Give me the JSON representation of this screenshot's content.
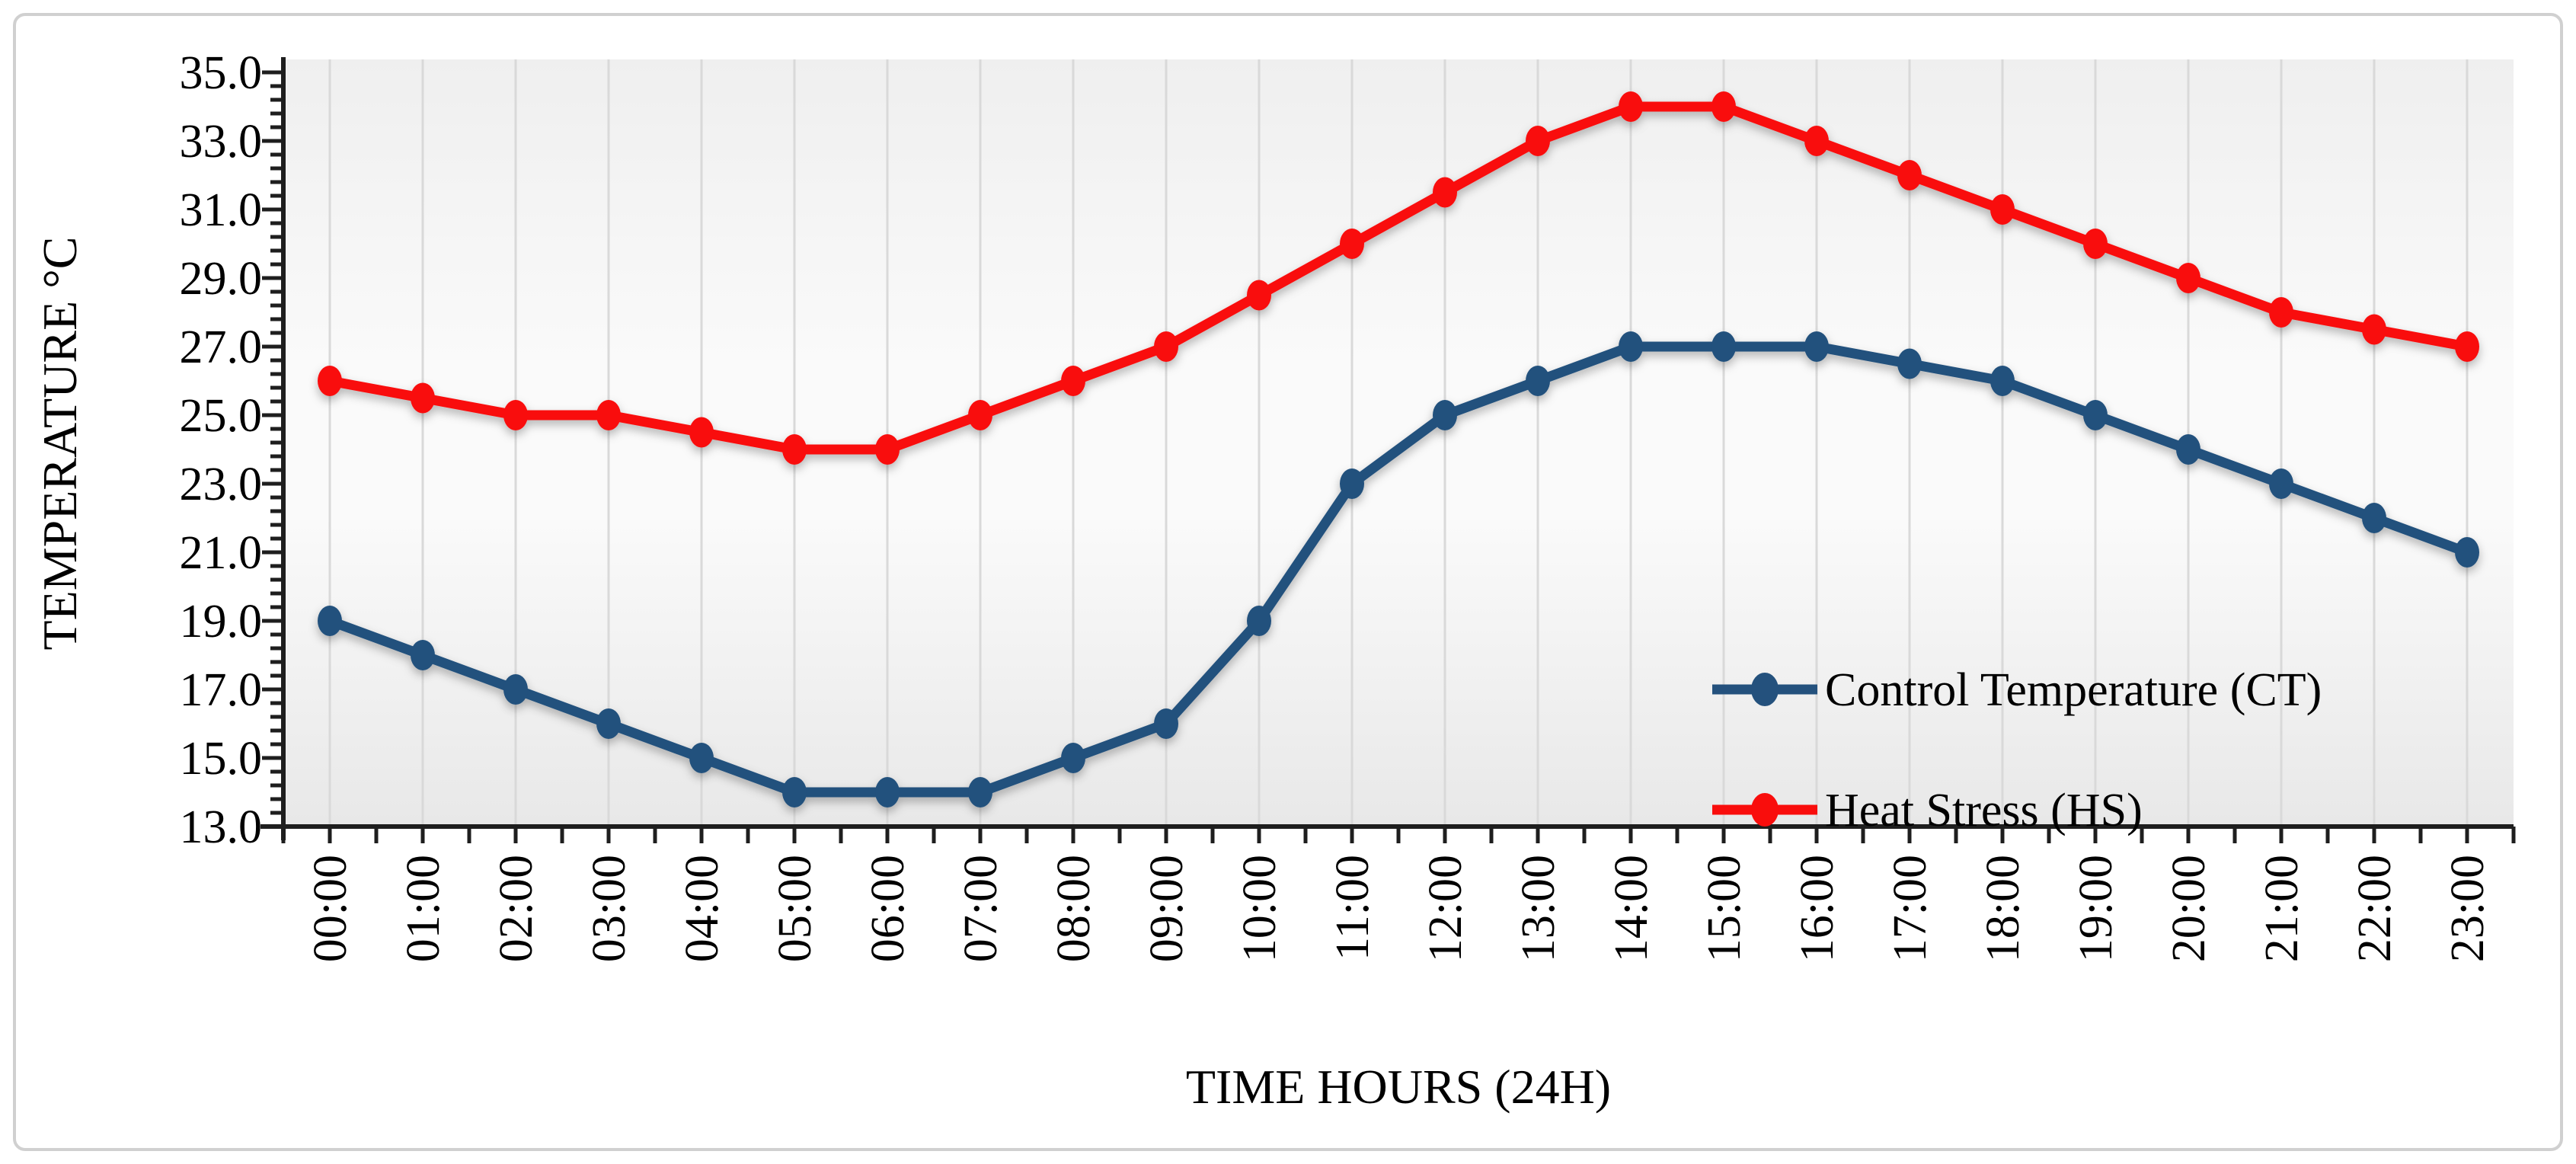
{
  "figure": {
    "border_color": "#D0D0D0",
    "background_color": "#FFFFFF",
    "plot_gradient": [
      "#EFEFEF",
      "#FAFAFA",
      "#FAFAFA",
      "#E8E8E8"
    ],
    "gridline_color": "#D9D9D9",
    "axis_color": "#1E1E1E"
  },
  "chart_data": {
    "type": "line",
    "title": "",
    "xlabel": "TIME HOURS (24H)",
    "ylabel": "TEMPERATURE °C",
    "categories": [
      "00:00",
      "01:00",
      "02:00",
      "03:00",
      "04:00",
      "05:00",
      "06:00",
      "07:00",
      "08:00",
      "09:00",
      "10:00",
      "11:00",
      "12:00",
      "13:00",
      "14:00",
      "15:00",
      "16:00",
      "17:00",
      "18:00",
      "19:00",
      "20:00",
      "21:00",
      "22:00",
      "23:00"
    ],
    "series": [
      {
        "name": "Control Temperature (CT)",
        "color": "#24517D",
        "values": [
          19.0,
          18.0,
          17.0,
          16.0,
          15.0,
          14.0,
          14.0,
          14.0,
          15.0,
          16.0,
          19.0,
          23.0,
          25.0,
          26.0,
          27.0,
          27.0,
          27.0,
          26.5,
          26.0,
          25.0,
          24.0,
          23.0,
          22.0,
          21.0
        ]
      },
      {
        "name": "Heat Stress (HS)",
        "color": "#F90D0C",
        "values": [
          26.0,
          25.5,
          25.0,
          25.0,
          24.5,
          24.0,
          24.0,
          25.0,
          26.0,
          27.0,
          28.5,
          30.0,
          31.5,
          33.0,
          34.0,
          34.0,
          33.0,
          32.0,
          31.0,
          30.0,
          29.0,
          28.0,
          27.5,
          27.0
        ]
      }
    ],
    "ylim": [
      13.0,
      35.0
    ],
    "ytick_interval": 2.0,
    "ytick_minor_interval": 0.4,
    "ytick_labels": [
      "35.0",
      "33.0",
      "31.0",
      "29.0",
      "27.0",
      "25.0",
      "23.0",
      "21.0",
      "19.0",
      "17.0",
      "15.0",
      "13.0"
    ],
    "grid": "vertical-only",
    "legend_position": "inside-right",
    "legend": [
      "Control Temperature (CT)",
      "Heat Stress (HS)"
    ]
  }
}
